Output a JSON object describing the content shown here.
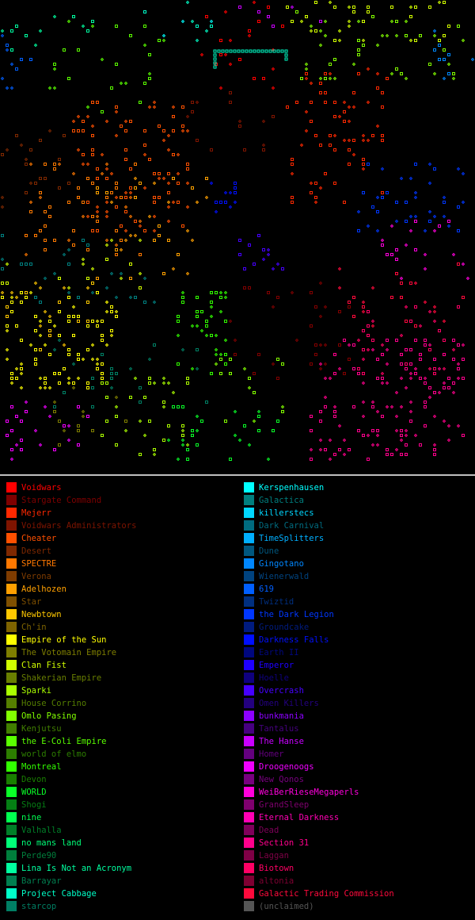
{
  "legend": {
    "left": [
      {
        "name": "Voidwars",
        "color": "#ff0000"
      },
      {
        "name": "Stargate Command",
        "color": "#7f0000"
      },
      {
        "name": "Mejerr",
        "color": "#ff2800"
      },
      {
        "name": "Voidwars Administrators",
        "color": "#7f1400"
      },
      {
        "name": "Cheater",
        "color": "#ff5000"
      },
      {
        "name": "Desert",
        "color": "#7f2800"
      },
      {
        "name": "SPECTRE",
        "color": "#ff7800"
      },
      {
        "name": "Verona",
        "color": "#7f3c00"
      },
      {
        "name": "Adelhozen",
        "color": "#ffa000"
      },
      {
        "name": "Star",
        "color": "#7f5000"
      },
      {
        "name": "Newbtown",
        "color": "#ffc800"
      },
      {
        "name": "Ch'in",
        "color": "#7f6400"
      },
      {
        "name": "Empire of the Sun",
        "color": "#ffff00"
      },
      {
        "name": "The Votomain Empire",
        "color": "#7f7f00"
      },
      {
        "name": "Clan Fist",
        "color": "#d2ff00"
      },
      {
        "name": "Shakerian Empire",
        "color": "#697f00"
      },
      {
        "name": "Sparki",
        "color": "#aaff00"
      },
      {
        "name": "House Corrino",
        "color": "#557f00"
      },
      {
        "name": "Omlo Pasing",
        "color": "#82ff00"
      },
      {
        "name": "Kenjutsu",
        "color": "#417f00"
      },
      {
        "name": "the E-Coli Empire",
        "color": "#5aff00"
      },
      {
        "name": "world of elmo",
        "color": "#2d7f00"
      },
      {
        "name": "Montreal",
        "color": "#32ff00"
      },
      {
        "name": "Devon",
        "color": "#197f00"
      },
      {
        "name": "WORLD",
        "color": "#0aff28"
      },
      {
        "name": "Shogi",
        "color": "#057f14"
      },
      {
        "name": "nine",
        "color": "#00ff50"
      },
      {
        "name": "Valhalla",
        "color": "#007f28"
      },
      {
        "name": "no mans land",
        "color": "#00ff78"
      },
      {
        "name": "Perde90",
        "color": "#007f3c"
      },
      {
        "name": "Lina Is Not an Acronym",
        "color": "#00ffa0"
      },
      {
        "name": "Barrayar",
        "color": "#007f50"
      },
      {
        "name": "Project Cabbage",
        "color": "#00ffc8"
      },
      {
        "name": "starcop",
        "color": "#007f64"
      }
    ],
    "right": [
      {
        "name": "Kerspenhausen",
        "color": "#00ffff"
      },
      {
        "name": "Galactica",
        "color": "#007f7f"
      },
      {
        "name": "killerstecs",
        "color": "#00d7ff"
      },
      {
        "name": "Dark Carnival",
        "color": "#006b7f"
      },
      {
        "name": "TimeSplitters",
        "color": "#00afff"
      },
      {
        "name": "Dune",
        "color": "#00577f"
      },
      {
        "name": "Gingotano",
        "color": "#0087ff"
      },
      {
        "name": "Wienerwald",
        "color": "#00437f"
      },
      {
        "name": "619",
        "color": "#005fff"
      },
      {
        "name": "Twiztid",
        "color": "#002f7f"
      },
      {
        "name": "the Dark Legion",
        "color": "#0037ff"
      },
      {
        "name": "Groundcake",
        "color": "#001b7f"
      },
      {
        "name": "Darkness Falls",
        "color": "#000fff"
      },
      {
        "name": "Earth II",
        "color": "#00077f"
      },
      {
        "name": "Emperor",
        "color": "#1e00ff"
      },
      {
        "name": "Hoelle",
        "color": "#0f007f"
      },
      {
        "name": "Overcrash",
        "color": "#4600ff"
      },
      {
        "name": "Omen Killers",
        "color": "#23007f"
      },
      {
        "name": "bunkmania",
        "color": "#8c00ff"
      },
      {
        "name": "Tantalus",
        "color": "#46007f"
      },
      {
        "name": "The Hanse",
        "color": "#c800ff"
      },
      {
        "name": "Homer",
        "color": "#64007f"
      },
      {
        "name": "Droogenoogs",
        "color": "#f000ff"
      },
      {
        "name": "New Qonos",
        "color": "#78007f"
      },
      {
        "name": "WeiBerRieseMegaperls",
        "color": "#ff00dc"
      },
      {
        "name": "GrandSleep",
        "color": "#7f006e"
      },
      {
        "name": "Eternal Darkness",
        "color": "#ff00b4"
      },
      {
        "name": "Dead",
        "color": "#7f005a"
      },
      {
        "name": "Section 31",
        "color": "#ff008c"
      },
      {
        "name": "Laggan",
        "color": "#7f0046"
      },
      {
        "name": "Biotown",
        "color": "#ff0064"
      },
      {
        "name": "altonia",
        "color": "#7f0032"
      },
      {
        "name": "Galactic Trading Commission",
        "color": "#ff0a3c"
      },
      {
        "name": "(unclaimed)",
        "color": "#555555"
      }
    ]
  },
  "map": {
    "seed": 7,
    "regions": [
      {
        "owner": "Empire of the Sun",
        "xr": [
          0,
          0.25
        ],
        "yr": [
          0.62,
          0.83
        ],
        "density": 0.16
      },
      {
        "owner": "Newbtown",
        "xr": [
          0.0,
          0.2
        ],
        "yr": [
          0.6,
          0.75
        ],
        "density": 0.08
      },
      {
        "owner": "Cheater",
        "xr": [
          0.15,
          0.4
        ],
        "yr": [
          0.22,
          0.5
        ],
        "density": 0.14
      },
      {
        "owner": "SPECTRE",
        "xr": [
          0.05,
          0.3
        ],
        "yr": [
          0.35,
          0.55
        ],
        "density": 0.1
      },
      {
        "owner": "Desert",
        "xr": [
          0.0,
          0.15
        ],
        "yr": [
          0.28,
          0.45
        ],
        "density": 0.06
      },
      {
        "owner": "Adelhozen",
        "xr": [
          0.2,
          0.45
        ],
        "yr": [
          0.38,
          0.6
        ],
        "density": 0.08
      },
      {
        "owner": "Voidwars",
        "xr": [
          0.42,
          0.6
        ],
        "yr": [
          0.0,
          0.2
        ],
        "density": 0.08
      },
      {
        "owner": "Mejerr",
        "xr": [
          0.6,
          0.82
        ],
        "yr": [
          0.15,
          0.45
        ],
        "density": 0.12
      },
      {
        "owner": "Voidwars Administrators",
        "xr": [
          0.38,
          0.6
        ],
        "yr": [
          0.18,
          0.35
        ],
        "density": 0.06
      },
      {
        "owner": "Stargate Command",
        "xr": [
          0.48,
          0.75
        ],
        "yr": [
          0.6,
          0.82
        ],
        "density": 0.06
      },
      {
        "owner": "Montreal",
        "xr": [
          0.37,
          0.48
        ],
        "yr": [
          0.62,
          0.82
        ],
        "density": 0.14
      },
      {
        "owner": "Sparki",
        "xr": [
          0.2,
          0.4
        ],
        "yr": [
          0.8,
          0.97
        ],
        "density": 0.1
      },
      {
        "owner": "WORLD",
        "xr": [
          0.35,
          0.6
        ],
        "yr": [
          0.85,
          0.98
        ],
        "density": 0.1
      },
      {
        "owner": "Omlo Pasing",
        "xr": [
          0.45,
          0.6
        ],
        "yr": [
          0.75,
          0.9
        ],
        "density": 0.06
      },
      {
        "owner": "the Dark Legion",
        "xr": [
          0.75,
          0.98
        ],
        "yr": [
          0.35,
          0.5
        ],
        "density": 0.12
      },
      {
        "owner": "619",
        "xr": [
          0.0,
          0.08
        ],
        "yr": [
          0.08,
          0.2
        ],
        "density": 0.1
      },
      {
        "owner": "Darkness Falls",
        "xr": [
          0.38,
          0.5
        ],
        "yr": [
          0.38,
          0.46
        ],
        "density": 0.12
      },
      {
        "owner": "Overcrash",
        "xr": [
          0.5,
          0.6
        ],
        "yr": [
          0.5,
          0.58
        ],
        "density": 0.1
      },
      {
        "owner": "Section 31",
        "xr": [
          0.65,
          0.98
        ],
        "yr": [
          0.72,
          0.98
        ],
        "density": 0.16
      },
      {
        "owner": "Biotown",
        "xr": [
          0.75,
          0.98
        ],
        "yr": [
          0.65,
          0.8
        ],
        "density": 0.1
      },
      {
        "owner": "Droogenoogs",
        "xr": [
          0.0,
          0.2
        ],
        "yr": [
          0.85,
          0.98
        ],
        "density": 0.1
      },
      {
        "owner": "The Hanse",
        "xr": [
          0.5,
          0.68
        ],
        "yr": [
          0.0,
          0.1
        ],
        "density": 0.06
      },
      {
        "owner": "Lina Is Not an Acronym",
        "xr": [
          0.0,
          0.2
        ],
        "yr": [
          0.0,
          0.12
        ],
        "density": 0.06
      },
      {
        "owner": "Project Cabbage",
        "xr": [
          0.3,
          0.45
        ],
        "yr": [
          0.0,
          0.1
        ],
        "density": 0.06
      },
      {
        "owner": "Clan Fist",
        "xr": [
          0.6,
          0.95
        ],
        "yr": [
          0.0,
          0.1
        ],
        "density": 0.1
      },
      {
        "owner": "Omlo Pasing",
        "xr": [
          0.6,
          0.98
        ],
        "yr": [
          0.03,
          0.18
        ],
        "density": 0.08
      },
      {
        "owner": "the E-Coli Empire",
        "xr": [
          0.1,
          0.35
        ],
        "yr": [
          0.05,
          0.25
        ],
        "density": 0.08
      },
      {
        "owner": "Kerspenhausen",
        "xr": [
          0.3,
          0.5
        ],
        "yr": [
          0.05,
          0.14
        ],
        "density": 0.04
      },
      {
        "owner": "Galactica",
        "xr": [
          0.0,
          0.35
        ],
        "yr": [
          0.5,
          0.65
        ],
        "density": 0.06
      },
      {
        "owner": "Clan Fist",
        "xr": [
          0.0,
          0.3
        ],
        "yr": [
          0.5,
          0.62
        ],
        "density": 0.06
      },
      {
        "owner": "Gingotano",
        "xr": [
          0.88,
          1.0
        ],
        "yr": [
          0.0,
          0.18
        ],
        "density": 0.06
      },
      {
        "owner": "starcop",
        "xr": [
          0.1,
          0.45
        ],
        "yr": [
          0.72,
          0.88
        ],
        "density": 0.04
      },
      {
        "owner": "WeiBerRieseMegaperls",
        "xr": [
          0.8,
          1.0
        ],
        "yr": [
          0.45,
          0.6
        ],
        "density": 0.06
      },
      {
        "owner": "Galactic Trading Commission",
        "xr": [
          0.7,
          0.98
        ],
        "yr": [
          0.55,
          0.7
        ],
        "density": 0.06
      },
      {
        "owner": "The Votomain Empire",
        "xr": [
          0.1,
          0.3
        ],
        "yr": [
          0.8,
          0.95
        ],
        "density": 0.06
      }
    ]
  }
}
